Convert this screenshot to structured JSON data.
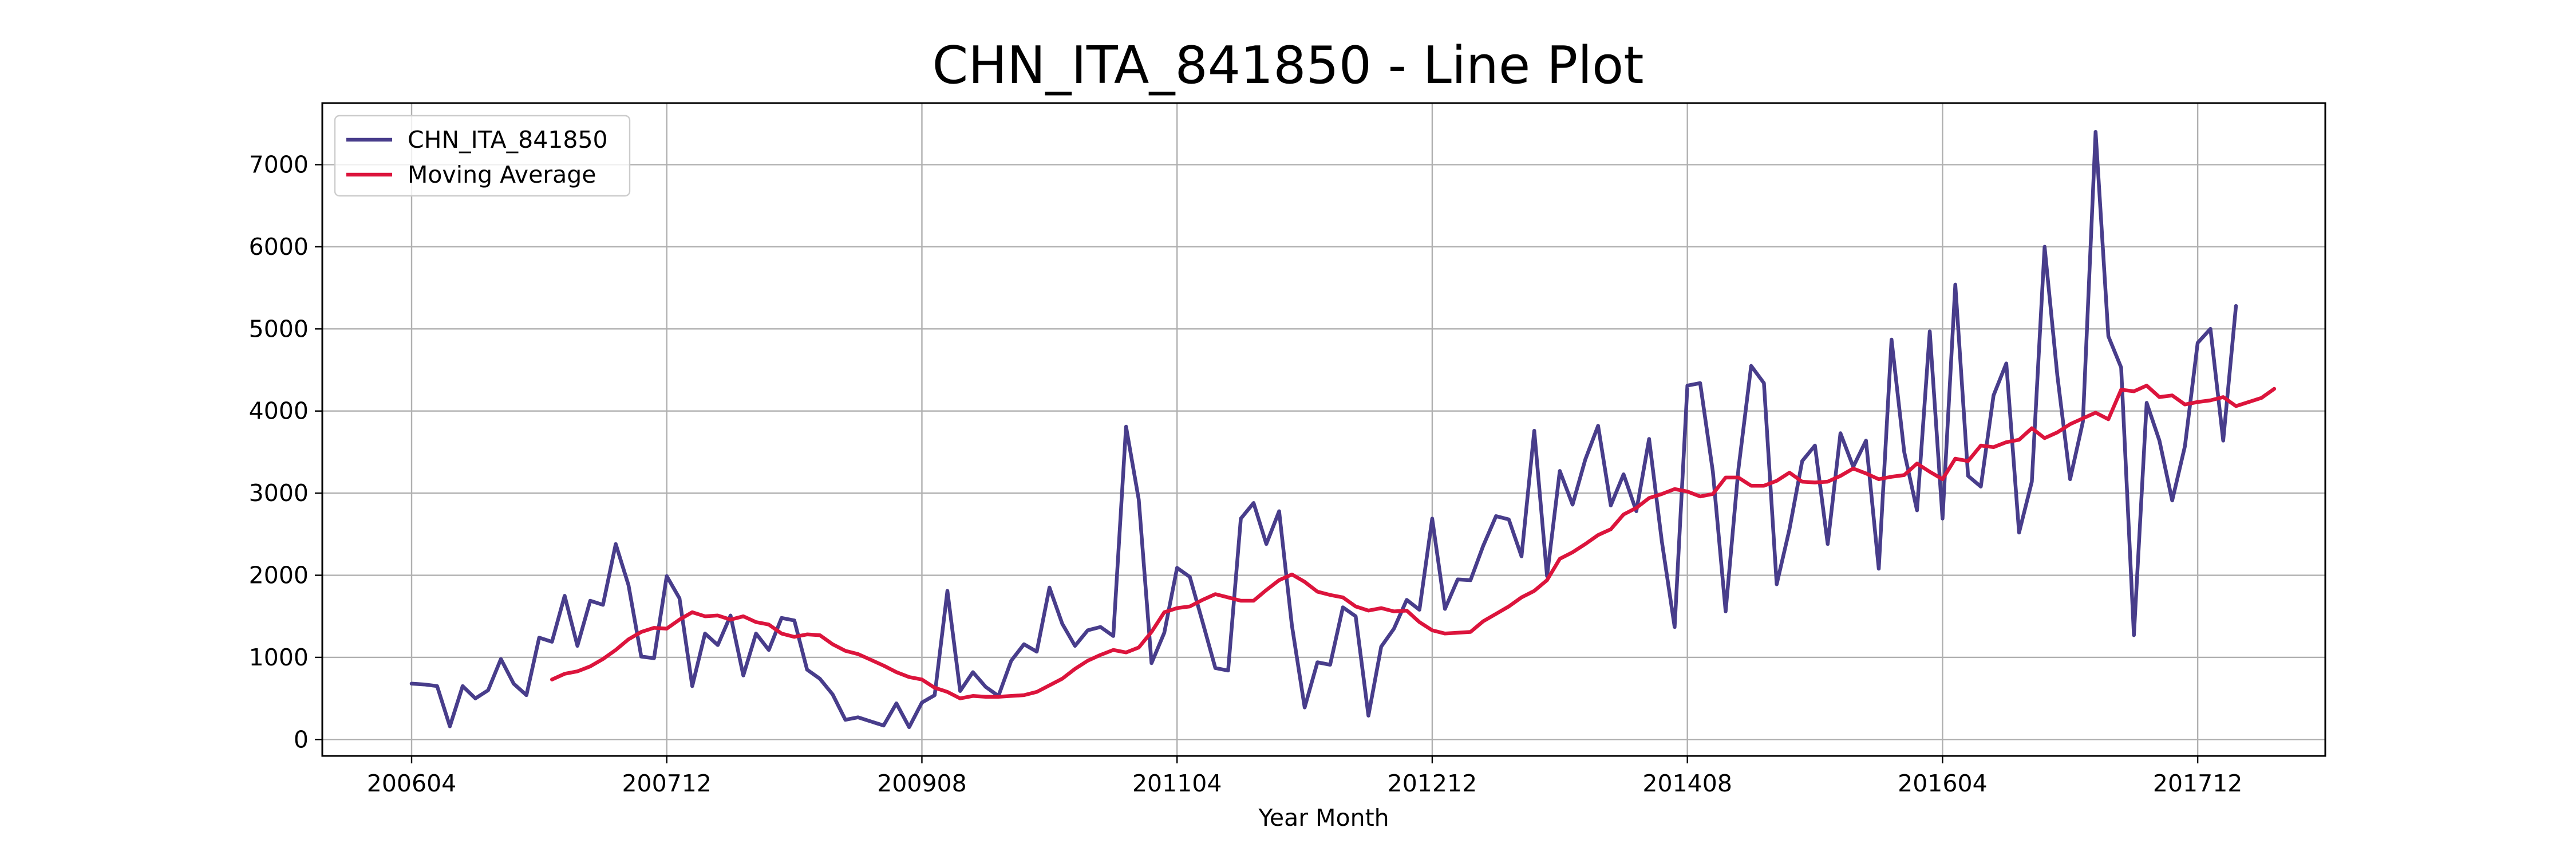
{
  "chart_data": {
    "type": "line",
    "title": "CHN_ITA_841850 - Line Plot",
    "xlabel": "Year Month",
    "ylabel": "",
    "ylim": [
      -200,
      7750
    ],
    "yticks": [
      0,
      1000,
      2000,
      3000,
      4000,
      5000,
      6000,
      7000
    ],
    "xticks": [
      {
        "index": 0,
        "label": "200604"
      },
      {
        "index": 20,
        "label": "200712"
      },
      {
        "index": 40,
        "label": "200908"
      },
      {
        "index": 60,
        "label": "201104"
      },
      {
        "index": 80,
        "label": "201212"
      },
      {
        "index": 100,
        "label": "201408"
      },
      {
        "index": 120,
        "label": "201604"
      },
      {
        "index": 140,
        "label": "201712"
      }
    ],
    "grid": true,
    "legend_position": "top-left",
    "series": [
      {
        "name": "CHN_ITA_841850",
        "color": "#483D8B",
        "values": [
          680,
          670,
          650,
          160,
          650,
          500,
          600,
          980,
          680,
          540,
          1240,
          1190,
          1750,
          1140,
          1690,
          1640,
          2380,
          1880,
          1010,
          990,
          1990,
          1720,
          650,
          1290,
          1150,
          1510,
          780,
          1290,
          1090,
          1480,
          1450,
          850,
          740,
          550,
          240,
          270,
          220,
          170,
          440,
          150,
          450,
          540,
          1810,
          590,
          820,
          640,
          530,
          960,
          1160,
          1070,
          1850,
          1410,
          1140,
          1330,
          1370,
          1260,
          3810,
          2920,
          930,
          1300,
          2090,
          1980,
          1430,
          870,
          840,
          2690,
          2880,
          2380,
          2780,
          1390,
          390,
          940,
          910,
          1610,
          1500,
          290,
          1130,
          1350,
          1700,
          1580,
          2690,
          1590,
          1950,
          1940,
          2360,
          2720,
          2680,
          2230,
          3760,
          1990,
          3270,
          2860,
          3410,
          3820,
          2850,
          3230,
          2780,
          3660,
          2410,
          1370,
          4310,
          4340,
          3260,
          1560,
          3290,
          4550,
          4340,
          1890,
          2560,
          3390,
          3580,
          2380,
          3730,
          3320,
          3640,
          2080,
          4870,
          3500,
          2790,
          4970,
          2690,
          5540,
          3210,
          3080,
          4190,
          4580,
          2520,
          3140,
          6000,
          4430,
          3170,
          3870,
          7400,
          4910,
          4530,
          1270,
          4100,
          3640,
          2910,
          3570,
          4830,
          5000,
          3640,
          5280
        ]
      },
      {
        "name": "Moving Average",
        "color": "#DC143C",
        "start_index": 11,
        "values": [
          730,
          800,
          830,
          890,
          980,
          1090,
          1220,
          1310,
          1360,
          1350,
          1460,
          1550,
          1500,
          1510,
          1460,
          1500,
          1430,
          1400,
          1290,
          1250,
          1280,
          1270,
          1160,
          1080,
          1040,
          970,
          900,
          820,
          760,
          730,
          630,
          580,
          500,
          530,
          520,
          520,
          530,
          540,
          580,
          660,
          740,
          860,
          960,
          1030,
          1090,
          1060,
          1120,
          1310,
          1550,
          1600,
          1620,
          1700,
          1770,
          1730,
          1690,
          1690,
          1820,
          1940,
          2010,
          1920,
          1800,
          1760,
          1730,
          1620,
          1570,
          1600,
          1560,
          1570,
          1430,
          1330,
          1290,
          1300,
          1310,
          1440,
          1530,
          1620,
          1730,
          1810,
          1940,
          2200,
          2280,
          2380,
          2490,
          2560,
          2740,
          2820,
          2940,
          2990,
          3050,
          3020,
          2960,
          2990,
          3190,
          3190,
          3090,
          3090,
          3150,
          3250,
          3140,
          3130,
          3140,
          3210,
          3300,
          3240,
          3170,
          3200,
          3220,
          3360,
          3260,
          3170,
          3420,
          3390,
          3580,
          3560,
          3620,
          3650,
          3790,
          3670,
          3740,
          3840,
          3910,
          3980,
          3900,
          4260,
          4240,
          4310,
          4170,
          4190,
          4080,
          4110,
          4130,
          4170,
          4060,
          4110,
          4160,
          4270
        ]
      }
    ]
  }
}
